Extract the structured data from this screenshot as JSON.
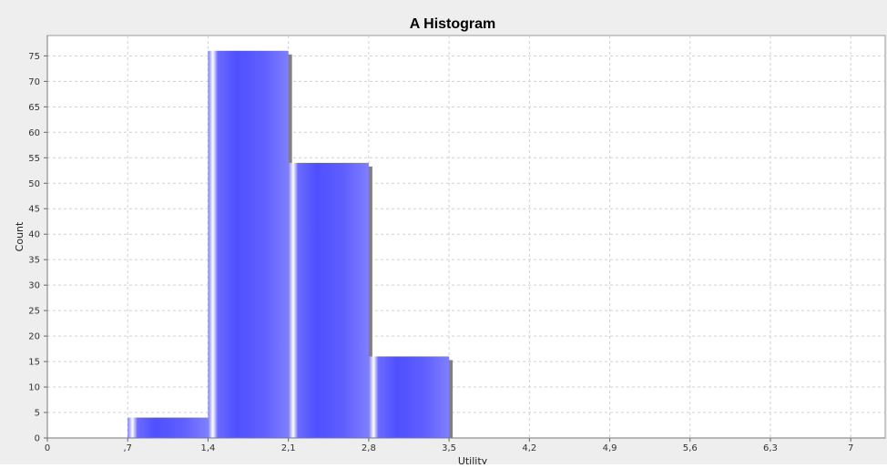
{
  "page_title_fragment": "",
  "colors": {
    "background": "#eeeeee",
    "plot_background": "#ffffff",
    "bar_base": "#5b5bff",
    "bar_highlight": "#ffffff",
    "shadow": "#808080",
    "grid": "#d0d0d0",
    "title_link": "#1a63b7"
  },
  "chart_data": {
    "type": "bar",
    "title": "A Histogram",
    "xlabel": "Utility",
    "ylabel": "Count",
    "xlim": [
      0,
      7.3
    ],
    "ylim": [
      0,
      79
    ],
    "x_ticks": [
      0,
      0.7,
      1.4,
      2.1,
      2.8,
      3.5,
      4.2,
      4.9,
      5.6,
      6.3,
      7
    ],
    "x_tick_labels": [
      "0",
      ",7",
      "1,4",
      "2,1",
      "2,8",
      "3,5",
      "4,2",
      "4,9",
      "5,6",
      "6,3",
      "7"
    ],
    "y_ticks": [
      0,
      5,
      10,
      15,
      20,
      25,
      30,
      35,
      40,
      45,
      50,
      55,
      60,
      65,
      70,
      75
    ],
    "y_tick_labels": [
      "0",
      "5",
      "10",
      "15",
      "20",
      "25",
      "30",
      "35",
      "40",
      "45",
      "50",
      "55",
      "60",
      "65",
      "70",
      "75"
    ],
    "bins": [
      {
        "x0": 0.7,
        "x1": 1.4,
        "count": 4
      },
      {
        "x0": 1.4,
        "x1": 2.1,
        "count": 76
      },
      {
        "x0": 2.1,
        "x1": 2.8,
        "count": 54
      },
      {
        "x0": 2.8,
        "x1": 3.5,
        "count": 16
      }
    ],
    "grid": true,
    "legend": "none"
  }
}
